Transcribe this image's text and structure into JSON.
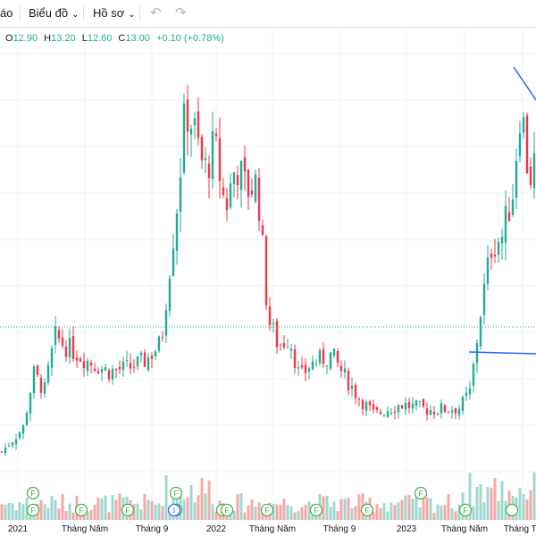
{
  "toolbar": {
    "item1": "áo",
    "item2": "Biểu đồ",
    "item3": "Hồ sơ",
    "undo_icon": "undo-icon",
    "redo_icon": "redo-icon"
  },
  "ohlc": {
    "o_label": "O",
    "o_value": "12.90",
    "h_label": "H",
    "h_value": "13.20",
    "l_label": "L",
    "l_value": "12.60",
    "c_label": "C",
    "c_value": "13.00",
    "change": "+0.10 (+0.78%)"
  },
  "colors": {
    "up": "#22ab94",
    "down": "#f23645",
    "vol_up": "#9fd8cf",
    "vol_down": "#f7a9a7",
    "trendline": "#2962ff",
    "grid": "#f0f3fa"
  },
  "chart_data": {
    "type": "candlestick",
    "x_ticks": [
      "2021",
      "Tháng Năm",
      "Tháng 9",
      "2022",
      "Tháng Năm",
      "Tháng 9",
      "2023",
      "Tháng Năm",
      "Tháng Tá"
    ],
    "price_path": [
      [
        0,
        4.2
      ],
      [
        0.04,
        5.5
      ],
      [
        0.06,
        8.5
      ],
      [
        0.08,
        7.5
      ],
      [
        0.1,
        10.5
      ],
      [
        0.12,
        10.0
      ],
      [
        0.16,
        9.2
      ],
      [
        0.2,
        8.6
      ],
      [
        0.24,
        8.8
      ],
      [
        0.27,
        9.2
      ],
      [
        0.3,
        10.2
      ],
      [
        0.31,
        13.0
      ],
      [
        0.33,
        18.0
      ],
      [
        0.345,
        23.0
      ],
      [
        0.36,
        22.0
      ],
      [
        0.38,
        19.5
      ],
      [
        0.4,
        21.0
      ],
      [
        0.42,
        17.5
      ],
      [
        0.44,
        20.0
      ],
      [
        0.46,
        18.5
      ],
      [
        0.48,
        19.0
      ],
      [
        0.5,
        11.5
      ],
      [
        0.52,
        10.0
      ],
      [
        0.54,
        10.5
      ],
      [
        0.56,
        8.2
      ],
      [
        0.58,
        9.0
      ],
      [
        0.62,
        9.5
      ],
      [
        0.64,
        8.5
      ],
      [
        0.67,
        7.2
      ],
      [
        0.7,
        6.2
      ],
      [
        0.72,
        6.5
      ],
      [
        0.75,
        6.8
      ],
      [
        0.8,
        6.5
      ],
      [
        0.86,
        6.6
      ],
      [
        0.88,
        7.5
      ],
      [
        0.9,
        12.0
      ],
      [
        0.92,
        15.5
      ],
      [
        0.94,
        16.0
      ],
      [
        0.96,
        18.5
      ],
      [
        0.975,
        23.5
      ],
      [
        0.99,
        19.0
      ],
      [
        1.0,
        20.0
      ]
    ],
    "price_range": [
      3.5,
      26.0
    ],
    "events": [
      "F",
      "F",
      "F",
      "F",
      "F",
      "F",
      "F",
      "F",
      "F",
      "F",
      "F",
      "F",
      "I",
      "F"
    ]
  }
}
